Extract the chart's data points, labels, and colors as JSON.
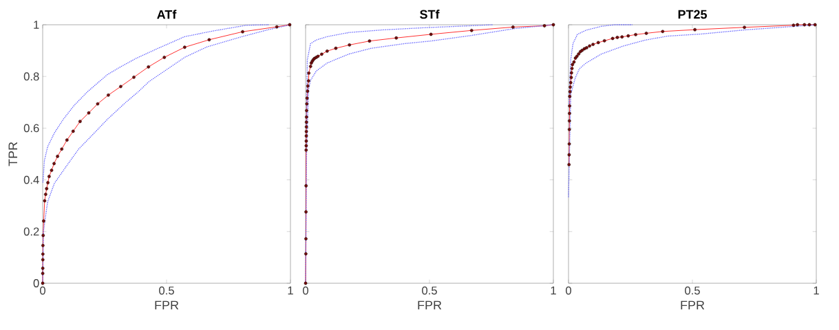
{
  "chart_data": [
    {
      "type": "line",
      "title": "ATf",
      "xlabel": "FPR",
      "ylabel": "TPR",
      "xlim": [
        0,
        1
      ],
      "ylim": [
        0,
        1
      ],
      "xticks": [
        0,
        0.5,
        1
      ],
      "yticks": [
        0,
        0.2,
        0.4,
        0.6,
        0.8,
        1
      ],
      "series": [
        {
          "color": "#ff2020",
          "marker": "circle",
          "line_style": "solid",
          "x": [
            0,
            0.0002,
            0.0004,
            0.0006,
            0.0008,
            0.001,
            0.002,
            0.004,
            0.008,
            0.012,
            0.016,
            0.021,
            0.026,
            0.036,
            0.046,
            0.06,
            0.077,
            0.098,
            0.123,
            0.151,
            0.186,
            0.222,
            0.265,
            0.315,
            0.368,
            0.427,
            0.491,
            0.573,
            0.672,
            0.807,
            0.945,
            0.997
          ],
          "values": [
            0,
            0.038,
            0.058,
            0.091,
            0.113,
            0.146,
            0.185,
            0.241,
            0.319,
            0.344,
            0.366,
            0.389,
            0.413,
            0.437,
            0.463,
            0.491,
            0.519,
            0.554,
            0.588,
            0.626,
            0.659,
            0.694,
            0.728,
            0.761,
            0.797,
            0.837,
            0.874,
            0.913,
            0.942,
            0.973,
            0.992,
            1
          ]
        },
        {
          "color": "#5a5aff",
          "marker": "none",
          "line_style": "dotted",
          "x": [
            0.001,
            0.007,
            0.02,
            0.047,
            0.083,
            0.127,
            0.181,
            0.261,
            0.314,
            0.377,
            0.466,
            0.573,
            0.688,
            0.822,
            0.911
          ],
          "values": [
            0.39,
            0.475,
            0.528,
            0.581,
            0.634,
            0.688,
            0.741,
            0.807,
            0.837,
            0.87,
            0.909,
            0.954,
            0.976,
            0.998,
            1
          ]
        },
        {
          "color": "#5a5aff",
          "marker": "none",
          "line_style": "dotted",
          "x": [
            0,
            0.003,
            0.012,
            0.02,
            0.047,
            0.092,
            0.145,
            0.199,
            0.261,
            0.332,
            0.386,
            0.43,
            0.492,
            0.573,
            0.662,
            0.804,
            0.911,
            1
          ],
          "values": [
            0,
            0.2,
            0.262,
            0.315,
            0.386,
            0.448,
            0.519,
            0.572,
            0.634,
            0.697,
            0.741,
            0.781,
            0.821,
            0.874,
            0.914,
            0.954,
            0.981,
            1
          ]
        }
      ]
    },
    {
      "type": "line",
      "title": "STf",
      "xlabel": "FPR",
      "xlim": [
        0,
        1
      ],
      "ylim": [
        0,
        1
      ],
      "xticks": [
        0,
        0.5,
        1
      ],
      "yticks": [
        0,
        0.2,
        0.4,
        0.6,
        0.8,
        1
      ],
      "tick_labels": "x",
      "series": [
        {
          "color": "#ff2020",
          "marker": "circle",
          "line_style": "solid",
          "x": [
            0,
            0.001,
            0.0013,
            0.0016,
            0.0019,
            0.0022,
            0.0025,
            0.0027,
            0.0029,
            0.0031,
            0.0033,
            0.0035,
            0.0038,
            0.0041,
            0.005,
            0.006,
            0.008,
            0.009,
            0.012,
            0.013,
            0.02,
            0.023,
            0.027,
            0.031,
            0.036,
            0.043,
            0.05,
            0.065,
            0.087,
            0.122,
            0.177,
            0.258,
            0.366,
            0.506,
            0.67,
            0.837,
            0.964,
            1
          ],
          "values": [
            0,
            0.114,
            0.172,
            0.276,
            0.377,
            0.515,
            0.532,
            0.55,
            0.57,
            0.587,
            0.605,
            0.623,
            0.643,
            0.668,
            0.694,
            0.716,
            0.743,
            0.763,
            0.783,
            0.813,
            0.839,
            0.852,
            0.859,
            0.865,
            0.87,
            0.874,
            0.878,
            0.886,
            0.898,
            0.909,
            0.922,
            0.937,
            0.949,
            0.963,
            0.978,
            0.991,
            0.996,
            1
          ]
        },
        {
          "color": "#5a5aff",
          "marker": "none",
          "line_style": "dotted",
          "x": [
            0.003,
            0.007,
            0.02,
            0.043,
            0.087,
            0.176,
            0.31,
            0.488,
            0.665,
            0.754
          ],
          "values": [
            0.6,
            0.865,
            0.927,
            0.941,
            0.954,
            0.97,
            0.98,
            0.989,
            0.996,
            1
          ]
        },
        {
          "color": "#5a5aff",
          "marker": "none",
          "line_style": "dotted",
          "x": [
            0,
            0.004,
            0.012,
            0.02,
            0.043,
            0.087,
            0.176,
            0.265,
            0.399,
            0.505,
            0.665,
            0.843,
            1
          ],
          "values": [
            0,
            0.51,
            0.75,
            0.785,
            0.821,
            0.852,
            0.887,
            0.909,
            0.927,
            0.937,
            0.958,
            0.985,
            1
          ]
        }
      ]
    },
    {
      "type": "line",
      "title": "PT25",
      "xlabel": "FPR",
      "xlim": [
        0,
        1
      ],
      "ylim": [
        0,
        1
      ],
      "xticks": [
        0,
        0.5,
        1
      ],
      "yticks": [
        0,
        0.2,
        0.4,
        0.6,
        0.8,
        1
      ],
      "tick_labels": "x",
      "series": [
        {
          "color": "#ff2020",
          "marker": "circle",
          "line_style": "solid",
          "x": [
            0.002,
            0.0025,
            0.003,
            0.0033,
            0.0036,
            0.004,
            0.0045,
            0.005,
            0.006,
            0.007,
            0.009,
            0.011,
            0.012,
            0.014,
            0.016,
            0.022,
            0.028,
            0.034,
            0.041,
            0.048,
            0.055,
            0.064,
            0.073,
            0.085,
            0.099,
            0.12,
            0.145,
            0.178,
            0.197,
            0.216,
            0.241,
            0.271,
            0.314,
            0.38,
            0.51,
            0.71,
            0.908,
            0.924,
            0.952,
            0.972,
            0.995
          ],
          "values": [
            0.459,
            0.497,
            0.539,
            0.595,
            0.628,
            0.657,
            0.686,
            0.723,
            0.741,
            0.759,
            0.776,
            0.796,
            0.814,
            0.831,
            0.846,
            0.856,
            0.871,
            0.878,
            0.887,
            0.896,
            0.901,
            0.907,
            0.911,
            0.918,
            0.924,
            0.931,
            0.938,
            0.947,
            0.951,
            0.953,
            0.957,
            0.962,
            0.967,
            0.974,
            0.981,
            0.99,
            0.998,
            1,
            1,
            1,
            1
          ]
        },
        {
          "color": "#5a5aff",
          "marker": "none",
          "line_style": "dotted",
          "x": [
            0.002,
            0.009,
            0.018,
            0.036,
            0.071,
            0.133,
            0.186,
            0.258
          ],
          "values": [
            0.688,
            0.865,
            0.927,
            0.963,
            0.979,
            0.994,
            1,
            1
          ]
        },
        {
          "color": "#5a5aff",
          "marker": "none",
          "line_style": "dotted",
          "x": [
            0,
            0.009,
            0.027,
            0.044,
            0.071,
            0.133,
            0.222,
            0.311,
            0.4,
            0.533,
            0.71,
            0.844,
            1
          ],
          "values": [
            0.333,
            0.732,
            0.794,
            0.83,
            0.852,
            0.887,
            0.918,
            0.941,
            0.956,
            0.964,
            0.98,
            0.989,
            1
          ]
        }
      ]
    }
  ]
}
